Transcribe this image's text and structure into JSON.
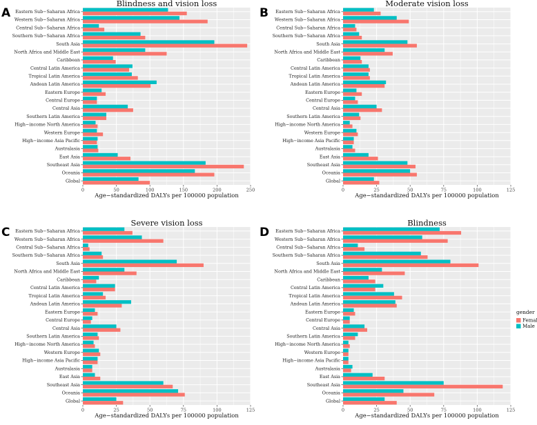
{
  "colors": {
    "female": "#F8766D",
    "male": "#00BFC4",
    "panel_bg": "#EBEBEB",
    "grid": "#FFFFFF"
  },
  "legend": {
    "title": "gender",
    "entries": [
      "Female",
      "Male"
    ]
  },
  "chart_data": [
    {
      "panel_label": "A",
      "type": "bar",
      "orientation": "horizontal",
      "title": "Blindness and vision loss",
      "xlabel": "Age−standardized DALYs per 100000 population",
      "xlim": [
        0,
        250
      ],
      "xticks": [
        0,
        50,
        100,
        150,
        200,
        250
      ],
      "categories": [
        "Eastern Sub−Saharan Africa",
        "Western Sub−Saharan Africa",
        "Central Sub−Saharan Africa",
        "Southern Sub−Saharan Africa",
        "South Asia",
        "North Africa and Middle East",
        "Caribbean",
        "Central Latin America",
        "Tropical Latin America",
        "Andean Latin America",
        "Eastern Europe",
        "Central Europe",
        "Central Asia",
        "Southern Latin America",
        "High−income North America",
        "Western Europe",
        "High−income Asia Pacific",
        "Australasia",
        "East Asia",
        "Southeast Asia",
        "Oceania",
        "Global"
      ],
      "series": [
        {
          "name": "Male",
          "values": [
            127,
            144,
            24,
            86,
            196,
            93,
            45,
            74,
            73,
            110,
            28,
            21,
            67,
            35,
            19,
            21,
            22,
            22,
            52,
            183,
            167,
            83
          ]
        },
        {
          "name": "Female",
          "values": [
            155,
            186,
            32,
            93,
            245,
            125,
            49,
            69,
            82,
            101,
            34,
            21,
            75,
            35,
            22,
            30,
            21,
            23,
            71,
            240,
            196,
            100
          ]
        }
      ]
    },
    {
      "panel_label": "B",
      "type": "bar",
      "orientation": "horizontal",
      "title": "Moderate vision loss",
      "xlabel": "Age−standardized DALYs per 100000 population",
      "xlim": [
        0,
        125
      ],
      "xticks": [
        0,
        25,
        50,
        75,
        100,
        125
      ],
      "categories": [
        "Eastern Sub−Saharan Africa",
        "Western Sub−Saharan Africa",
        "Central Sub−Saharan Africa",
        "Southern Sub−Saharan Africa",
        "South Asia",
        "North Africa and Middle East",
        "Caribbean",
        "Central Latin America",
        "Tropical Latin America",
        "Andean Latin America",
        "Eastern Europe",
        "Central Europe",
        "Central Asia",
        "Southern Latin America",
        "High−income North America",
        "Western Europe",
        "High−income Asia Pacific",
        "Australasia",
        "East Asia",
        "Southeast Asia",
        "Oceania",
        "Global"
      ],
      "series": [
        {
          "name": "Male",
          "values": [
            23,
            40,
            9,
            12,
            48,
            31,
            13,
            19,
            19,
            32,
            10,
            9,
            25,
            12,
            5,
            10,
            8,
            7,
            19,
            48,
            50,
            23
          ]
        },
        {
          "name": "Female",
          "values": [
            28,
            49,
            10,
            14,
            55,
            37,
            14,
            20,
            20,
            31,
            14,
            11,
            29,
            13,
            7,
            11,
            8,
            9,
            26,
            54,
            55,
            27
          ]
        }
      ]
    },
    {
      "panel_label": "C",
      "type": "bar",
      "orientation": "horizontal",
      "title": "Severe vision loss",
      "xlabel": "Age−standardized DALYs per 100000 population",
      "xlim": [
        0,
        125
      ],
      "xticks": [
        0,
        25,
        50,
        75,
        100,
        125
      ],
      "categories": [
        "Eastern Sub−Saharan Africa",
        "Western Sub−Saharan Africa",
        "Central Sub−Saharan Africa",
        "Southern Sub−Saharan Africa",
        "South Asia",
        "North Africa and Middle East",
        "Caribbean",
        "Central Latin America",
        "Tropical Latin America",
        "Andean Latin America",
        "Eastern Europe",
        "Central Europe",
        "Central Asia",
        "Southern Latin America",
        "High−income North America",
        "Western Europe",
        "High−income Asia Pacific",
        "Australasia",
        "East Asia",
        "Southeast Asia",
        "Oceania",
        "Global"
      ],
      "series": [
        {
          "name": "Male",
          "values": [
            31,
            44,
            4,
            14,
            70,
            31,
            12,
            24,
            15,
            36,
            9,
            7,
            25,
            11,
            8,
            12,
            11,
            7,
            9,
            60,
            71,
            25
          ]
        },
        {
          "name": "Female",
          "values": [
            37,
            60,
            5,
            15,
            90,
            40,
            10,
            24,
            17,
            29,
            11,
            6,
            28,
            12,
            9,
            13,
            11,
            7,
            13,
            67,
            76,
            30
          ]
        }
      ]
    },
    {
      "panel_label": "D",
      "type": "bar",
      "orientation": "horizontal",
      "title": "Blindness",
      "xlabel": "Age−standardized DALYs per 100000 population",
      "xlim": [
        0,
        125
      ],
      "xticks": [
        0,
        25,
        50,
        75,
        100,
        125
      ],
      "categories": [
        "Eastern Sub−Saharan Africa",
        "Western Sub−Saharan Africa",
        "Central Sub−Saharan Africa",
        "Southern Sub−Saharan Africa",
        "South Asia",
        "North Africa and Middle East",
        "Caribbean",
        "Central Latin America",
        "Tropical Latin America",
        "Andean Latin America",
        "Eastern Europe",
        "Central Europe",
        "Central Asia",
        "Southern Latin America",
        "High−income North America",
        "Western Europe",
        "High−income Asia Pacific",
        "Australasia",
        "East Asia",
        "Southeast Asia",
        "Oceania",
        "Global"
      ],
      "series": [
        {
          "name": "Male",
          "values": [
            72,
            59,
            11,
            58,
            80,
            29,
            19,
            30,
            38,
            39,
            8,
            5,
            16,
            11,
            4,
            4,
            4,
            7,
            22,
            75,
            45,
            31
          ]
        },
        {
          "name": "Female",
          "values": [
            88,
            78,
            16,
            63,
            101,
            46,
            24,
            24,
            44,
            40,
            9,
            5,
            18,
            9,
            5,
            4,
            4,
            6,
            31,
            119,
            68,
            40
          ]
        }
      ]
    }
  ]
}
